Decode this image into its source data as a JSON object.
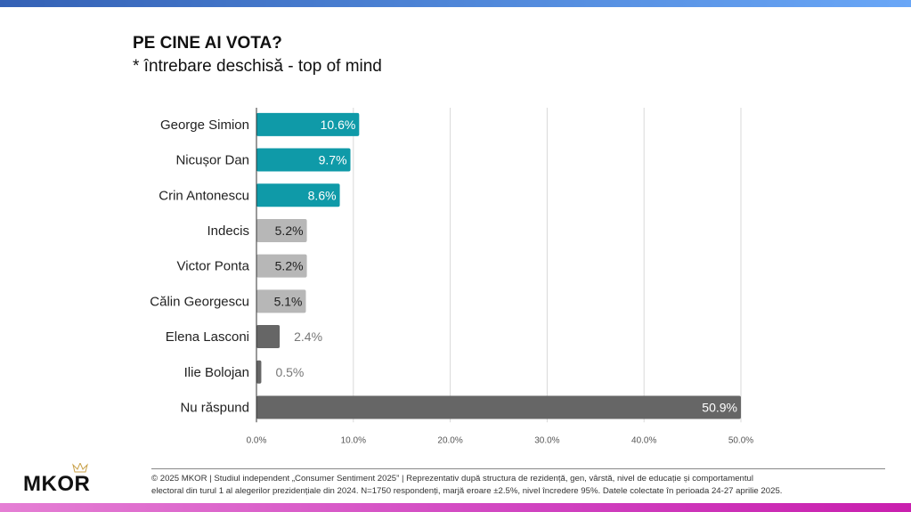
{
  "title": "PE CINE AI VOTA?",
  "subtitle": "* întrebare deschisă - top of mind",
  "chart_data": {
    "type": "bar",
    "orientation": "horizontal",
    "categories": [
      "George Simion",
      "Nicușor Dan",
      "Crin Antonescu",
      "Indecis",
      "Victor Ponta",
      "Călin Georgescu",
      "Elena Lasconi",
      "Ilie Bolojan",
      "Nu răspund"
    ],
    "values": [
      10.6,
      9.7,
      8.6,
      5.2,
      5.2,
      5.1,
      2.4,
      0.5,
      50.9
    ],
    "value_labels": [
      "10.6%",
      "9.7%",
      "8.6%",
      "5.2%",
      "5.2%",
      "5.1%",
      "2.4%",
      "0.5%",
      "50.9%"
    ],
    "colors": [
      "#0f9aa8",
      "#0f9aa8",
      "#0f9aa8",
      "#b7b7b7",
      "#b7b7b7",
      "#b7b7b7",
      "#666666",
      "#666666",
      "#666666"
    ],
    "xlim": [
      0,
      50
    ],
    "xticks": [
      "0.0%",
      "10.0%",
      "20.0%",
      "30.0%",
      "40.0%",
      "50.0%"
    ],
    "grid": true,
    "xlabel": "",
    "ylabel": ""
  },
  "logo": "MKOR",
  "footer": {
    "line1": "© 2025 MKOR | Studiul independent „Consumer Sentiment 2025” | Reprezentativ după structura de rezidență, gen, vârstă, nivel de educație și comportamentul",
    "line2": "electoral din turul 1 al alegerilor prezidențiale din 2024. N=1750 respondenți, marjă eroare ±2.5%, nivel încredere 95%. Datele colectate în perioada 24-27 aprilie 2025."
  }
}
